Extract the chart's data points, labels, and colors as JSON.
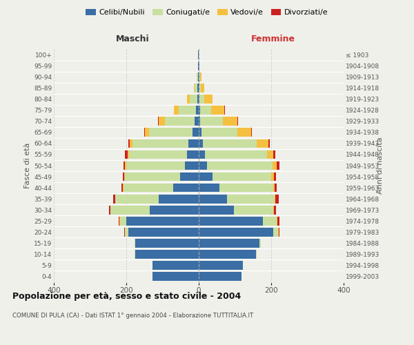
{
  "age_groups": [
    "0-4",
    "5-9",
    "10-14",
    "15-19",
    "20-24",
    "25-29",
    "30-34",
    "35-39",
    "40-44",
    "45-49",
    "50-54",
    "55-59",
    "60-64",
    "65-69",
    "70-74",
    "75-79",
    "80-84",
    "85-89",
    "90-94",
    "95-99",
    "100+"
  ],
  "birth_years": [
    "1999-2003",
    "1994-1998",
    "1989-1993",
    "1984-1988",
    "1979-1983",
    "1974-1978",
    "1969-1973",
    "1964-1968",
    "1959-1963",
    "1954-1958",
    "1949-1953",
    "1944-1948",
    "1939-1943",
    "1934-1938",
    "1929-1933",
    "1924-1928",
    "1919-1923",
    "1914-1918",
    "1909-1913",
    "1904-1908",
    "≤ 1903"
  ],
  "male_celibi": [
    128,
    128,
    175,
    175,
    195,
    200,
    135,
    110,
    70,
    52,
    38,
    32,
    28,
    18,
    12,
    8,
    4,
    3,
    2,
    1,
    1
  ],
  "male_coniugati": [
    0,
    0,
    2,
    2,
    8,
    18,
    108,
    120,
    138,
    152,
    162,
    160,
    155,
    120,
    82,
    48,
    20,
    8,
    3,
    1,
    0
  ],
  "male_vedovi": [
    0,
    0,
    0,
    0,
    1,
    1,
    1,
    1,
    1,
    2,
    3,
    4,
    7,
    10,
    16,
    12,
    8,
    3,
    1,
    0,
    0
  ],
  "male_divorziati": [
    0,
    0,
    0,
    0,
    1,
    2,
    4,
    6,
    5,
    4,
    5,
    8,
    4,
    2,
    2,
    1,
    0,
    0,
    0,
    0,
    0
  ],
  "fem_celibi": [
    118,
    122,
    158,
    168,
    205,
    178,
    98,
    78,
    58,
    38,
    22,
    18,
    12,
    8,
    4,
    3,
    2,
    1,
    1,
    1,
    0
  ],
  "fem_coniugati": [
    0,
    0,
    2,
    3,
    14,
    38,
    108,
    132,
    148,
    162,
    182,
    170,
    148,
    98,
    62,
    32,
    14,
    5,
    2,
    0,
    0
  ],
  "fem_vedovi": [
    0,
    0,
    0,
    0,
    1,
    2,
    2,
    2,
    4,
    8,
    12,
    18,
    32,
    38,
    40,
    36,
    22,
    10,
    4,
    1,
    0
  ],
  "fem_divorziati": [
    0,
    0,
    0,
    0,
    2,
    5,
    5,
    8,
    5,
    5,
    6,
    5,
    4,
    2,
    2,
    1,
    1,
    0,
    0,
    0,
    0
  ],
  "colors": {
    "celibi": "#3A6EA5",
    "coniugati": "#C8DFA0",
    "vedovi": "#F5C040",
    "divorziati": "#CC2020"
  },
  "xlim": 400,
  "title": "Popolazione per età, sesso e stato civile - 2004",
  "subtitle": "COMUNE DI PULA (CA) - Dati ISTAT 1° gennaio 2004 - Elaborazione TUTTITALIA.IT",
  "ylabel_left": "Fasce di età",
  "ylabel_right": "Anni di nascita",
  "xlabel_left": "Maschi",
  "xlabel_right": "Femmine",
  "bg_color": "#f0f0eb"
}
